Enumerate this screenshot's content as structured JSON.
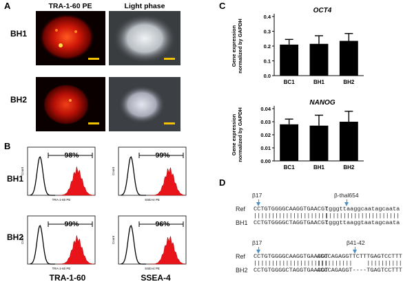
{
  "panels": {
    "A": "A",
    "B": "B",
    "C": "C",
    "D": "D"
  },
  "panelA": {
    "col_tra": "TRA-1-60  PE",
    "col_light": "Light phase",
    "row_bh1": "BH1",
    "row_bh2": "BH2"
  },
  "panelB": {
    "row_bh1": "BH1",
    "row_bh2": "BH2",
    "y_axis_label": "Count",
    "hist": [
      {
        "pct": "98%",
        "x_axis": "TRA-1-60 PE"
      },
      {
        "pct": "99%",
        "x_axis": "SSEA4 PE"
      },
      {
        "pct": "99%",
        "x_axis": "TRA-1-60 PE"
      },
      {
        "pct": "96%",
        "x_axis": "SSEA4 PE"
      }
    ],
    "bottom_left": "TRA-1-60",
    "bottom_right": "SSEA-4"
  },
  "panelD": {
    "top": {
      "mut1": "β17",
      "mut2": "β-thal654",
      "ref_label": "Ref",
      "ref_seq1": "CCTGTGGGGCAAGGTGAACGT",
      "ref_seq2": "tgggttaaggcaatagcaata",
      "bars1": "|||||||||||||||||||||",
      "bars2": "|||||||||||||||||||||",
      "sample_label": "BH1",
      "sample_seq1": "CCTGTGGGGCTAGGTGAACGT",
      "sample_seq2": "tgggttaaggtaatagcaata"
    },
    "bottom": {
      "mut1": "β17",
      "mut2": "β41-42",
      "ref_label": "Ref",
      "ref_seq1": "CCTGTGGGGCAAGGTGAACGT",
      "ref_seq2": "ACCCAGAGGTTCTTTGAGTCCTTT",
      "bars1": "|||||||||||||||||||||",
      "bars2": "||||||||||    ||||||||||",
      "sample_label": "BH2",
      "sample_seq1": "CCTGTGGGGCTAGGTGAACGT",
      "sample_seq2": "ACCCAGAGGT----TGAGTCCTTT"
    }
  },
  "chart_data": [
    {
      "type": "bar",
      "title": "OCT4",
      "categories": [
        "BC1",
        "BH1",
        "BH2"
      ],
      "values": [
        0.21,
        0.215,
        0.235
      ],
      "errors": [
        0.035,
        0.055,
        0.05
      ],
      "ylabel": "Gene expression normalized by GAPDH",
      "ylim": [
        0,
        0.4
      ],
      "yticks": [
        "0.0",
        "0.1",
        "0.2",
        "0.3",
        "0.4"
      ],
      "color": "#000000"
    },
    {
      "type": "bar",
      "title": "NANOG",
      "categories": [
        "BC1",
        "BH1",
        "BH2"
      ],
      "values": [
        0.028,
        0.027,
        0.03
      ],
      "errors": [
        0.004,
        0.008,
        0.008
      ],
      "ylabel": "Gene expression normalized by GAPDH",
      "ylim": [
        0,
        0.04
      ],
      "yticks": [
        "0.00",
        "0.01",
        "0.02",
        "0.03",
        "0.04"
      ],
      "color": "#000000"
    }
  ]
}
